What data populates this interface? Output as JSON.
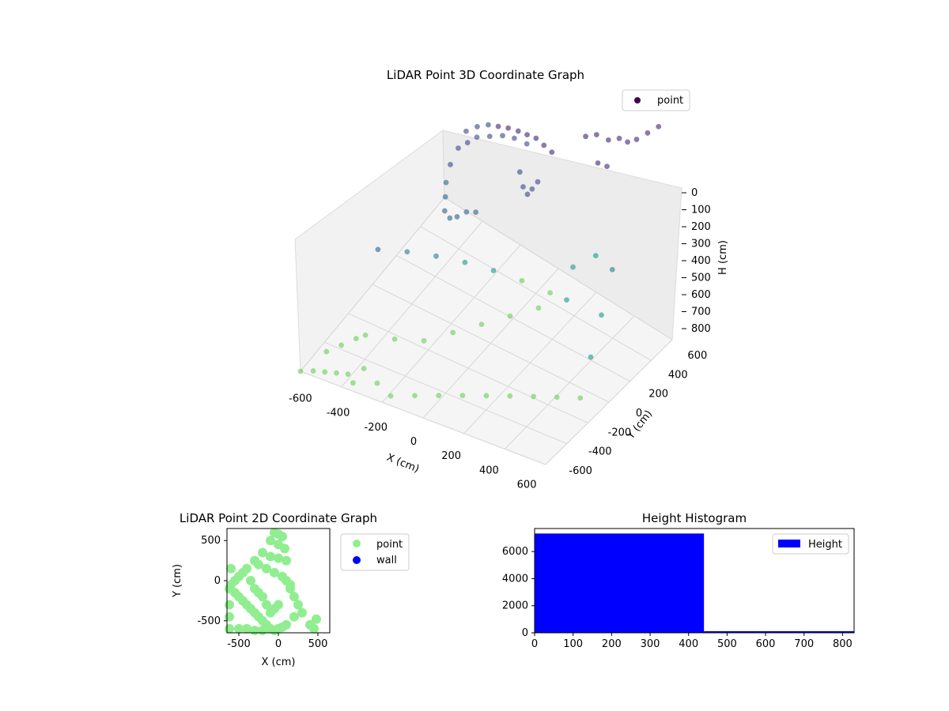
{
  "chart_data": [
    {
      "type": "scatter3d",
      "title": "LiDAR Point 3D Coordinate Graph",
      "xlabel": "X (cm)",
      "ylabel": "Y (cm)",
      "zlabel": "H (cm)",
      "xlim": [
        -650,
        650
      ],
      "ylim": [
        -650,
        650
      ],
      "zlim": [
        0,
        800
      ],
      "z_inverted": true,
      "x_ticks": [
        "-600",
        "-400",
        "-200",
        "0",
        "200",
        "400",
        "600"
      ],
      "y_ticks": [
        "-600",
        "-400",
        "-200",
        "0",
        "200",
        "400",
        "600"
      ],
      "z_ticks": [
        "0",
        "100",
        "200",
        "300",
        "400",
        "500",
        "600",
        "700",
        "800"
      ],
      "grid": true,
      "legend": {
        "placement": "top-right",
        "entries": [
          {
            "label": "point",
            "color": "#440154"
          }
        ]
      },
      "colormap": "viridis",
      "series": [
        {
          "name": "point",
          "description_of_values": "x,y,h in cm",
          "values": [
            [
              -300,
              280,
              260
            ],
            [
              -250,
              300,
              240
            ],
            [
              -200,
              320,
              230
            ],
            [
              -150,
              330,
              225
            ],
            [
              -100,
              340,
              220
            ],
            [
              -50,
              350,
              220
            ],
            [
              0,
              350,
              215
            ],
            [
              50,
              350,
              210
            ],
            [
              100,
              340,
              210
            ],
            [
              150,
              330,
              210
            ],
            [
              -320,
              240,
              300
            ],
            [
              -340,
              200,
              340
            ],
            [
              -340,
              160,
              380
            ],
            [
              -320,
              120,
              400
            ],
            [
              -300,
              80,
              420
            ],
            [
              -260,
              60,
              420
            ],
            [
              -220,
              60,
              400
            ],
            [
              -180,
              80,
              380
            ],
            [
              -140,
              100,
              380
            ],
            [
              0,
              280,
              300
            ],
            [
              30,
              260,
              330
            ],
            [
              60,
              250,
              340
            ],
            [
              80,
              260,
              320
            ],
            [
              100,
              280,
              300
            ],
            [
              -280,
              260,
              280
            ],
            [
              -240,
              280,
              260
            ],
            [
              -180,
              300,
              250
            ],
            [
              -120,
              320,
              240
            ],
            [
              -60,
              330,
              235
            ],
            [
              10,
              330,
              230
            ],
            [
              300,
              400,
              150
            ],
            [
              350,
              420,
              140
            ],
            [
              400,
              450,
              160
            ],
            [
              450,
              470,
              150
            ],
            [
              480,
              500,
              170
            ],
            [
              520,
              520,
              160
            ],
            [
              560,
              560,
              150
            ],
            [
              600,
              600,
              140
            ],
            [
              380,
              380,
              200
            ],
            [
              420,
              400,
              210
            ],
            [
              -500,
              -200,
              450
            ],
            [
              -400,
              -100,
              500
            ],
            [
              -300,
              0,
              550
            ],
            [
              -200,
              100,
              600
            ],
            [
              -100,
              200,
              650
            ],
            [
              0,
              300,
              700
            ],
            [
              100,
              400,
              750
            ],
            [
              200,
              450,
              650
            ],
            [
              300,
              500,
              600
            ],
            [
              -450,
              -400,
              700
            ],
            [
              -350,
              -300,
              750
            ],
            [
              -250,
              -200,
              780
            ],
            [
              -150,
              -100,
              760
            ],
            [
              -50,
              0,
              740
            ],
            [
              50,
              100,
              720
            ],
            [
              150,
              200,
              700
            ],
            [
              250,
              300,
              680
            ],
            [
              -600,
              -500,
              780
            ],
            [
              -550,
              -450,
              760
            ],
            [
              -500,
              -400,
              740
            ],
            [
              -400,
              -500,
              790
            ],
            [
              -300,
              -550,
              795
            ],
            [
              -200,
              -600,
              790
            ],
            [
              -100,
              -550,
              780
            ],
            [
              0,
              -500,
              770
            ],
            [
              100,
              -450,
              760
            ],
            [
              200,
              -400,
              750
            ],
            [
              300,
              -350,
              740
            ],
            [
              400,
              -300,
              730
            ],
            [
              500,
              -250,
              720
            ],
            [
              600,
              -200,
              710
            ],
            [
              550,
              0,
              650
            ],
            [
              500,
              200,
              600
            ],
            [
              450,
              400,
              550
            ],
            [
              -650,
              -650,
              800
            ],
            [
              -600,
              -620,
              800
            ],
            [
              -550,
              -600,
              800
            ],
            [
              -500,
              -580,
              800
            ],
            [
              -450,
              -560,
              800
            ],
            [
              -400,
              -600,
              800
            ]
          ]
        }
      ]
    },
    {
      "type": "scatter",
      "title": "LiDAR Point 2D Coordinate Graph",
      "xlabel": "X (cm)",
      "ylabel": "Y (cm)",
      "xlim": [
        -650,
        650
      ],
      "ylim": [
        -650,
        650
      ],
      "x_ticks": [
        "-500",
        "0",
        "500"
      ],
      "y_ticks": [
        "-500",
        "0",
        "500"
      ],
      "legend": {
        "placement": "outside-right",
        "entries": [
          {
            "label": "point",
            "color": "#90ee90"
          },
          {
            "label": "wall",
            "color": "#0000ff"
          }
        ]
      },
      "series": [
        {
          "name": "point",
          "color": "#90ee90",
          "values": [
            [
              -50,
              600
            ],
            [
              0,
              580
            ],
            [
              50,
              550
            ],
            [
              -100,
              500
            ],
            [
              0,
              450
            ],
            [
              80,
              400
            ],
            [
              -200,
              350
            ],
            [
              -100,
              300
            ],
            [
              0,
              280
            ],
            [
              100,
              250
            ],
            [
              -300,
              250
            ],
            [
              -250,
              200
            ],
            [
              -150,
              150
            ],
            [
              -50,
              100
            ],
            [
              50,
              50
            ],
            [
              100,
              0
            ],
            [
              150,
              -50
            ],
            [
              -400,
              150
            ],
            [
              -450,
              100
            ],
            [
              -500,
              50
            ],
            [
              -550,
              0
            ],
            [
              -600,
              -50
            ],
            [
              -620,
              -100
            ],
            [
              -600,
              150
            ],
            [
              -550,
              -150
            ],
            [
              -500,
              -200
            ],
            [
              -450,
              -250
            ],
            [
              -400,
              -300
            ],
            [
              -350,
              -350
            ],
            [
              -300,
              -400
            ],
            [
              -250,
              -450
            ],
            [
              -200,
              -500
            ],
            [
              -150,
              -550
            ],
            [
              -100,
              -600
            ],
            [
              -50,
              -620
            ],
            [
              0,
              -600
            ],
            [
              50,
              -580
            ],
            [
              100,
              -550
            ],
            [
              200,
              -450
            ],
            [
              300,
              -400
            ],
            [
              400,
              -550
            ],
            [
              450,
              -600
            ],
            [
              480,
              -480
            ],
            [
              250,
              -300
            ],
            [
              200,
              -200
            ],
            [
              150,
              -100
            ],
            [
              -350,
              0
            ],
            [
              -300,
              -100
            ],
            [
              -250,
              -150
            ],
            [
              -200,
              -200
            ],
            [
              -150,
              -300
            ],
            [
              -100,
              -400
            ],
            [
              -50,
              -350
            ],
            [
              0,
              -300
            ],
            [
              -620,
              -300
            ],
            [
              -620,
              -450
            ],
            [
              -620,
              -600
            ],
            [
              -500,
              -600
            ],
            [
              -400,
              -600
            ],
            [
              -300,
              -620
            ],
            [
              -200,
              -620
            ]
          ]
        },
        {
          "name": "wall",
          "color": "#0000ff",
          "values": []
        }
      ]
    },
    {
      "type": "bar",
      "title": "Height Histogram",
      "xlabel": "",
      "ylabel": "",
      "xlim": [
        0,
        830
      ],
      "ylim": [
        0,
        7700
      ],
      "x_ticks": [
        "0",
        "100",
        "200",
        "300",
        "400",
        "500",
        "600",
        "700",
        "800"
      ],
      "y_ticks": [
        "0",
        "2000",
        "4000",
        "6000"
      ],
      "legend": {
        "placement": "top-right",
        "entries": [
          {
            "label": "Height",
            "color": "#0000ff"
          }
        ]
      },
      "bins": [
        {
          "start": 0,
          "end": 440,
          "count": 7330
        },
        {
          "start": 440,
          "end": 830,
          "count": 120
        }
      ],
      "color": "#0000ff"
    }
  ]
}
